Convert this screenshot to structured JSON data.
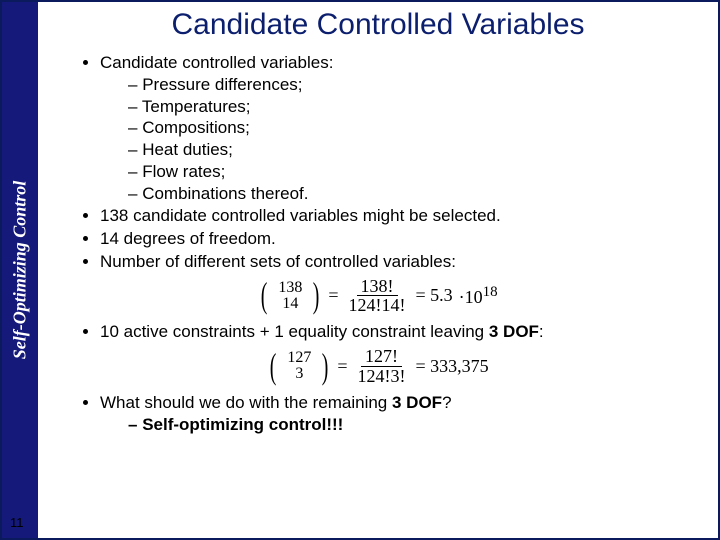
{
  "sidebar": {
    "label": "Self-Optimizing Control"
  },
  "title": "Candidate Controlled Variables",
  "b1": {
    "lead": "Candidate controlled variables:",
    "items": [
      "Pressure differences;",
      "Temperatures;",
      "Compositions;",
      "Heat duties;",
      "Flow rates;",
      "Combinations thereof."
    ]
  },
  "b2": "138 candidate controlled variables might be selected.",
  "b3": "14 degrees of freedom.",
  "b4": "Number of different sets of controlled variables:",
  "formula1": {
    "n": "138",
    "k": "14",
    "frac_num": "138!",
    "frac_den": "124!14!",
    "rhs_a": "= 5.3",
    "rhs_b": "·10",
    "rhs_exp": "18"
  },
  "b5_a": "10 active constraints + 1 equality constraint leaving ",
  "b5_b": "3 DOF",
  "b5_c": ":",
  "formula2": {
    "n": "127",
    "k": "3",
    "frac_num": "127!",
    "frac_den": "124!3!",
    "rhs": "= 333,375"
  },
  "b6_a": "What should we do with the remaining ",
  "b6_b": "3 DOF",
  "b6_c": "?",
  "b6_sub": "Self-optimizing control!!!",
  "page_number": "11"
}
